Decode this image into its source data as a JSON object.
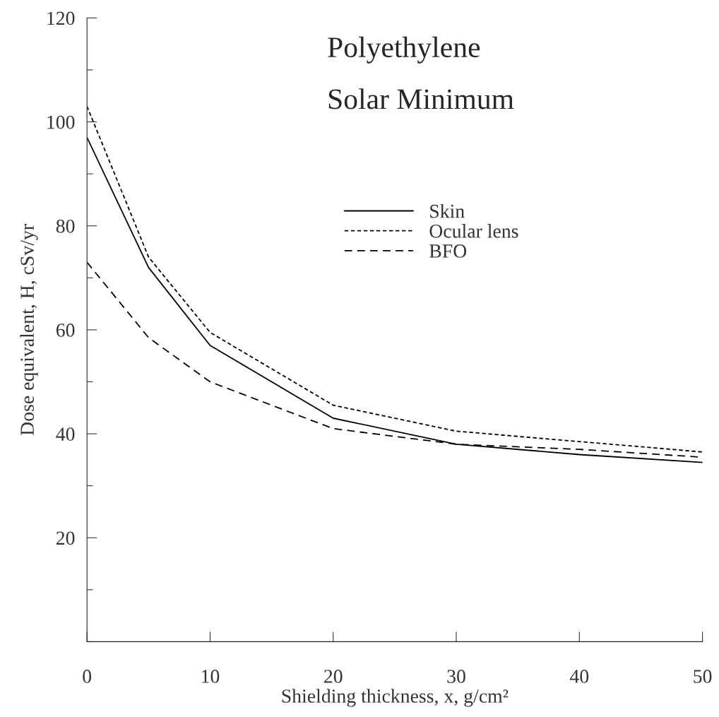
{
  "chart_data": {
    "type": "line",
    "xlabel": "Shielding thickness, x, g/cm²",
    "ylabel": "Dose equivalent, H, cSv/yr",
    "annotations": [
      "Polyethylene",
      "Solar Minimum"
    ],
    "x": [
      0,
      5,
      10,
      20,
      30,
      40,
      50
    ],
    "series": [
      {
        "name": "Skin",
        "color": "#000000",
        "line_style": "solid",
        "values": [
          97,
          72,
          57,
          43,
          38,
          36,
          34.5
        ]
      },
      {
        "name": "Ocular lens",
        "color": "#000000",
        "line_style": "dotted",
        "values": [
          103,
          74,
          59.5,
          45.5,
          40.5,
          38.5,
          36.5
        ]
      },
      {
        "name": "BFO",
        "color": "#000000",
        "line_style": "dashed",
        "values": [
          73,
          58.5,
          50,
          41,
          38,
          37,
          35.5
        ]
      }
    ],
    "xlim": [
      0,
      50
    ],
    "ylim": [
      0,
      120
    ],
    "xticks": [
      0,
      10,
      20,
      30,
      40,
      50
    ],
    "yticks": [
      {
        "value": 0,
        "label": null
      },
      {
        "value": 10,
        "label": null
      },
      20,
      {
        "value": 30,
        "label": null
      },
      40,
      {
        "value": 50,
        "label": null
      },
      60,
      {
        "value": 70,
        "label": null
      },
      80,
      {
        "value": 90,
        "label": null
      },
      100,
      {
        "value": 110,
        "label": null
      },
      120
    ],
    "grid": false,
    "legend": "top"
  }
}
